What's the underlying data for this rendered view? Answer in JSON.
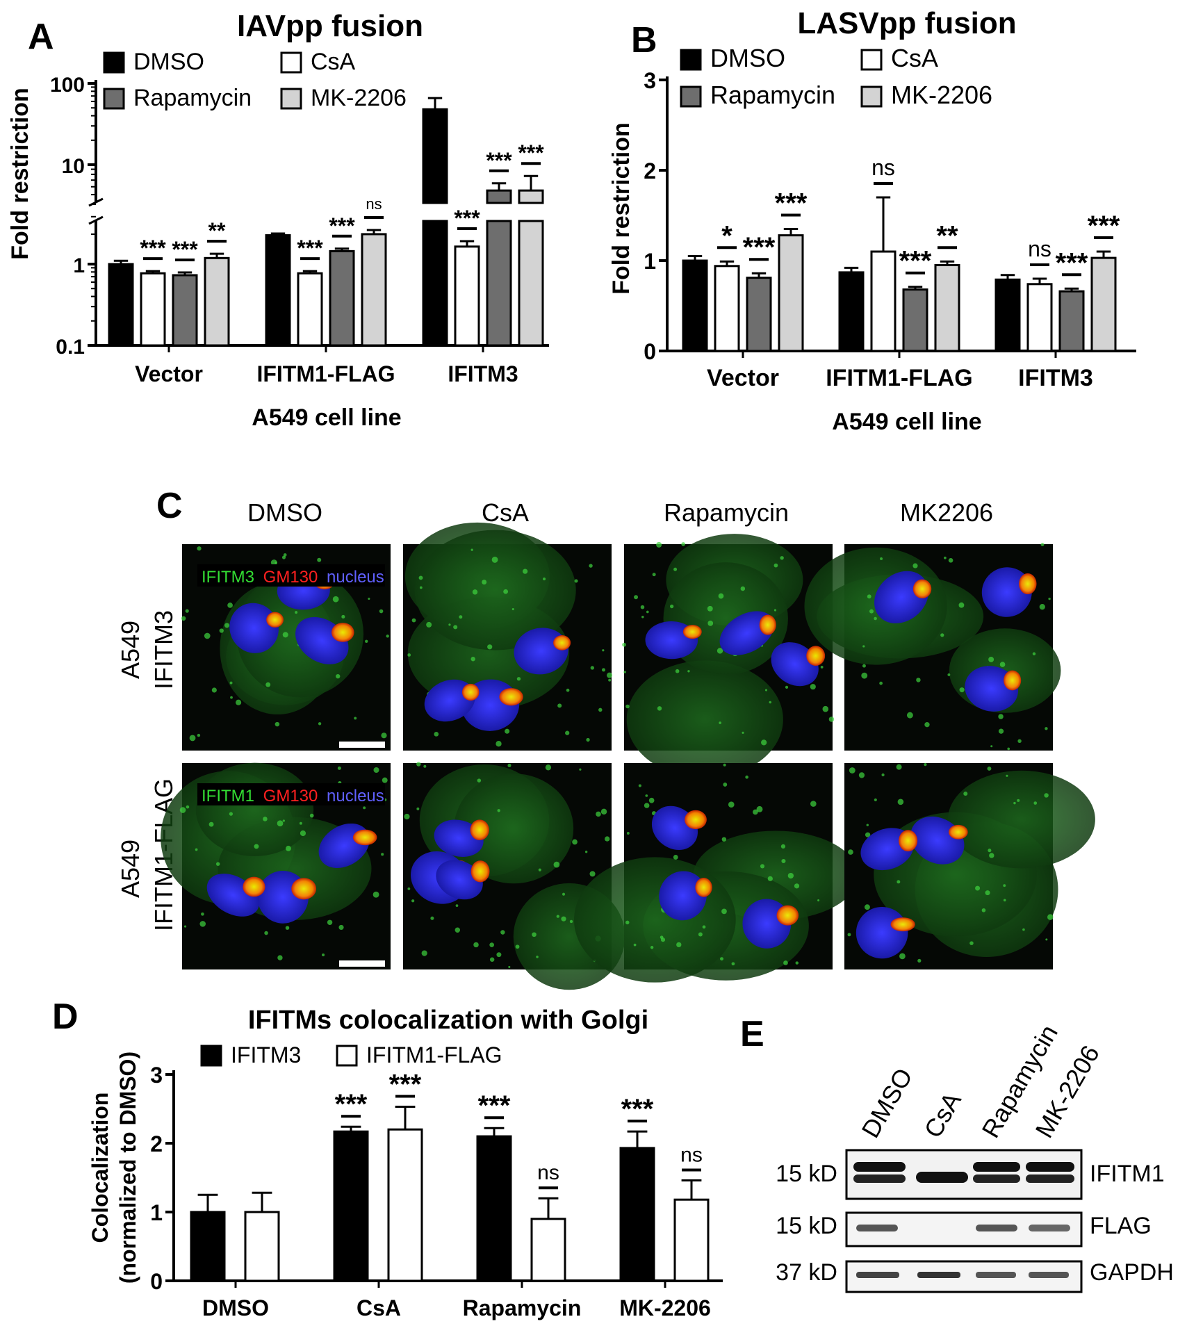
{
  "panel_labels": {
    "a": "A",
    "b": "B",
    "c": "C",
    "d": "D",
    "e": "E"
  },
  "colors": {
    "dmso": "#000000",
    "csa": "#ffffff",
    "rapamycin": "#6e6e6e",
    "mk2206": "#d3d3d3",
    "ifitm3": "#000000",
    "ifitm1_flag": "#ffffff"
  },
  "chart_data": [
    {
      "id": "A",
      "type": "bar",
      "title": "IAVpp fusion",
      "ylabel": "Fold restriction",
      "xlabel": "A549 cell line",
      "yscale": "log",
      "ylim": [
        0.1,
        100
      ],
      "yaxis_break": true,
      "yticks": [
        "100",
        "10",
        "1",
        "0.1"
      ],
      "categories": [
        "Vector",
        "IFITM1-FLAG",
        "IFITM3"
      ],
      "legend": [
        "DMSO",
        "CsA",
        "Rapamycin",
        "MK-2206"
      ],
      "series": [
        {
          "name": "DMSO",
          "values": [
            1.0,
            1.95,
            48
          ],
          "errors": [
            0.08,
            0.08,
            18
          ]
        },
        {
          "name": "CsA",
          "values": [
            0.77,
            0.77,
            1.5
          ],
          "errors": [
            0.05,
            0.05,
            0.2
          ]
        },
        {
          "name": "Rapamycin",
          "values": [
            0.73,
            1.35,
            5.5
          ],
          "errors": [
            0.06,
            0.08,
            1.0
          ]
        },
        {
          "name": "MK-2206",
          "values": [
            1.15,
            2.0,
            5.5
          ],
          "errors": [
            0.12,
            0.2,
            2.2
          ]
        }
      ],
      "significance": [
        [
          "***",
          "***",
          "**"
        ],
        [
          "***",
          "***",
          "ns"
        ],
        [
          "***",
          "***",
          "***"
        ]
      ]
    },
    {
      "id": "B",
      "type": "bar",
      "title": "LASVpp fusion",
      "ylabel": "Fold restriction",
      "xlabel": "A549 cell line",
      "ylim": [
        0,
        3
      ],
      "yticks": [
        "0",
        "1",
        "2",
        "3"
      ],
      "categories": [
        "Vector",
        "IFITM1-FLAG",
        "IFITM3"
      ],
      "legend": [
        "DMSO",
        "CsA",
        "Rapamycin",
        "MK-2206"
      ],
      "series": [
        {
          "name": "DMSO",
          "values": [
            1.0,
            0.87,
            0.79
          ],
          "errors": [
            0.05,
            0.05,
            0.05
          ]
        },
        {
          "name": "CsA",
          "values": [
            0.94,
            1.1,
            0.74
          ],
          "errors": [
            0.05,
            0.6,
            0.06
          ]
        },
        {
          "name": "Rapamycin",
          "values": [
            0.81,
            0.68,
            0.66
          ],
          "errors": [
            0.05,
            0.03,
            0.03
          ]
        },
        {
          "name": "MK-2206",
          "values": [
            1.28,
            0.95,
            1.03
          ],
          "errors": [
            0.07,
            0.04,
            0.07
          ]
        }
      ],
      "significance": [
        [
          "*",
          "***",
          "***"
        ],
        [
          "ns",
          "***",
          "**"
        ],
        [
          "ns",
          "***",
          "***"
        ]
      ]
    },
    {
      "id": "D",
      "type": "bar",
      "title": "IFITMs colocalization with Golgi",
      "ylabel": "Colocalization",
      "ylabel2": "(normalized to DMSO)",
      "ylim": [
        0,
        3
      ],
      "yticks": [
        "0",
        "1",
        "2",
        "3"
      ],
      "categories": [
        "DMSO",
        "CsA",
        "Rapamycin",
        "MK-2206"
      ],
      "legend": [
        "IFITM3",
        "IFITM1-FLAG"
      ],
      "series": [
        {
          "name": "IFITM3",
          "values": [
            1.0,
            2.17,
            2.1,
            1.93
          ],
          "errors": [
            0.25,
            0.07,
            0.12,
            0.24
          ]
        },
        {
          "name": "IFITM1-FLAG",
          "values": [
            1.0,
            2.2,
            0.9,
            1.18
          ],
          "errors": [
            0.28,
            0.33,
            0.3,
            0.28
          ]
        }
      ],
      "significance": [
        [
          "",
          ""
        ],
        [
          "***",
          "***"
        ],
        [
          "***",
          "ns"
        ],
        [
          "***",
          "ns"
        ]
      ]
    }
  ],
  "panel_c": {
    "columns": [
      "DMSO",
      "CsA",
      "Rapamycin",
      "MK2206"
    ],
    "rows": [
      {
        "line1": "A549",
        "line2": "IFITM3",
        "stain": [
          "IFITM3",
          "GM130",
          "nucleus"
        ]
      },
      {
        "line1": "A549",
        "line2": "IFITM1-FLAG",
        "stain": [
          "IFITM1",
          "GM130",
          "nucleus"
        ]
      }
    ]
  },
  "panel_e": {
    "lanes": [
      "DMSO",
      "CsA",
      "Rapamycin",
      "MK-2206"
    ],
    "blots": [
      {
        "size": "15 kD",
        "label": "IFITM1"
      },
      {
        "size": "15 kD",
        "label": "FLAG"
      },
      {
        "size": "37 kD",
        "label": "GAPDH"
      }
    ]
  }
}
